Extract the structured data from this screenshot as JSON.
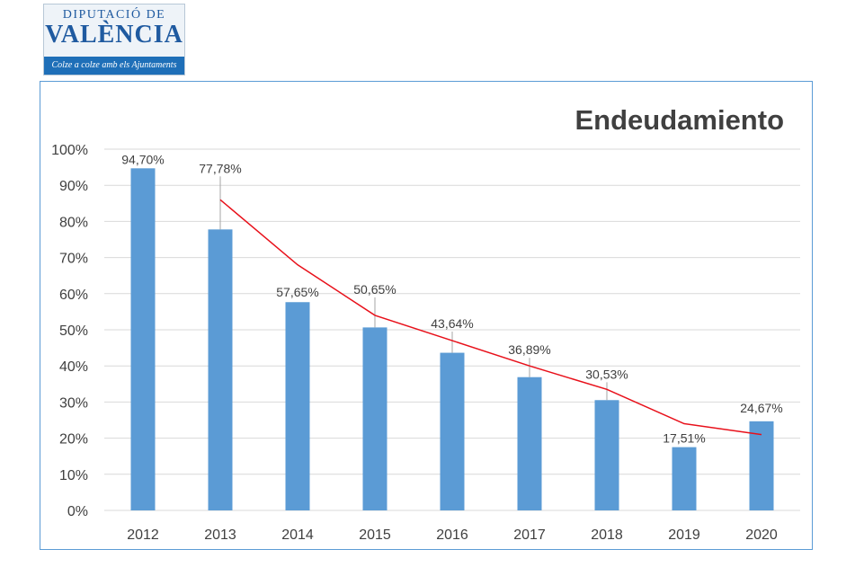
{
  "logo": {
    "line1": "DIPUTACIÓ DE",
    "line2": "VALÈNCIA",
    "tagline": "Colze a colze amb els Ajuntaments"
  },
  "chart_data": {
    "type": "bar",
    "title": "Endeudamiento",
    "categories": [
      "2012",
      "2013",
      "2014",
      "2015",
      "2016",
      "2017",
      "2018",
      "2019",
      "2020"
    ],
    "values": [
      94.7,
      77.78,
      57.65,
      50.65,
      43.64,
      36.89,
      30.53,
      17.51,
      24.67
    ],
    "value_labels": [
      "94,70%",
      "77,78%",
      "57,65%",
      "50,65%",
      "43,64%",
      "36,89%",
      "30,53%",
      "17,51%",
      "24,67%"
    ],
    "trend_line": [
      86,
      68,
      54,
      47,
      40,
      33.5,
      24,
      21
    ],
    "y_ticks": [
      "0%",
      "10%",
      "20%",
      "30%",
      "40%",
      "50%",
      "60%",
      "70%",
      "80%",
      "90%",
      "100%"
    ],
    "ylim": [
      0,
      100
    ],
    "xlabel": "",
    "ylabel": "",
    "grid": true,
    "colors": {
      "bar": "#5b9bd5",
      "trend": "#e8101a",
      "grid": "#d9d9d9",
      "title": "#404040"
    }
  }
}
